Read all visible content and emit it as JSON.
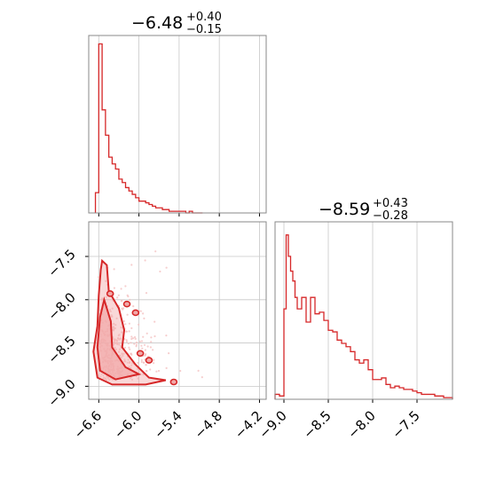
{
  "colors": {
    "accent": "#d62728",
    "fill": "#f1a9a9",
    "points": "#f4c2c2",
    "grid": "#c8c8c8",
    "frame": "#888888"
  },
  "chart_data": [
    {
      "type": "histogram",
      "panel": "param-1 marginal",
      "title": {
        "value": "−6.48",
        "plus": "+0.40",
        "minus": "−0.15"
      },
      "xlim": [
        -6.75,
        -4.1
      ],
      "xticks": [
        -6.6,
        -6.0,
        -5.4,
        -4.8,
        -4.2
      ],
      "bin_edges": [
        -6.65,
        -6.6,
        -6.55,
        -6.5,
        -6.45,
        -6.4,
        -6.35,
        -6.3,
        -6.25,
        -6.2,
        -6.15,
        -6.1,
        -6.05,
        -6.0,
        -5.95,
        -5.9,
        -5.85,
        -5.8,
        -5.75,
        -5.7,
        -5.65,
        -5.6,
        -5.55,
        -5.5,
        -5.45,
        -5.4,
        -5.35,
        -5.3,
        -5.25,
        -5.2,
        -5.15,
        -5.1,
        -5.05
      ],
      "counts": [
        0.12,
        1.0,
        0.61,
        0.46,
        0.33,
        0.29,
        0.26,
        0.2,
        0.18,
        0.15,
        0.13,
        0.11,
        0.09,
        0.07,
        0.07,
        0.06,
        0.05,
        0.04,
        0.03,
        0.03,
        0.02,
        0.02,
        0.01,
        0.01,
        0.01,
        0.01,
        0.01,
        0.0,
        0.01,
        0.0,
        0.0,
        0.0
      ]
    },
    {
      "type": "histogram",
      "panel": "param-2 marginal",
      "title": {
        "value": "−8.59",
        "plus": "+0.43",
        "minus": "−0.28"
      },
      "xlim": [
        -9.1,
        -7.1
      ],
      "xticks": [
        -9.0,
        -8.5,
        -8.0,
        -7.5
      ],
      "bin_edges": [
        -9.1,
        -9.05,
        -9.0,
        -8.975,
        -8.95,
        -8.925,
        -8.9,
        -8.875,
        -8.85,
        -8.8,
        -8.75,
        -8.7,
        -8.65,
        -8.6,
        -8.55,
        -8.5,
        -8.45,
        -8.4,
        -8.35,
        -8.3,
        -8.25,
        -8.2,
        -8.15,
        -8.1,
        -8.05,
        -8.0,
        -7.95,
        -7.9,
        -7.85,
        -7.8,
        -7.75,
        -7.7,
        -7.65,
        -7.6,
        -7.55,
        -7.5,
        -7.45,
        -7.4,
        -7.35,
        -7.3,
        -7.25,
        -7.2,
        -7.15,
        -7.1
      ],
      "counts": [
        0.03,
        0.02,
        0.55,
        1.0,
        0.87,
        0.78,
        0.72,
        0.62,
        0.55,
        0.62,
        0.47,
        0.62,
        0.52,
        0.53,
        0.48,
        0.42,
        0.41,
        0.36,
        0.34,
        0.32,
        0.29,
        0.24,
        0.22,
        0.24,
        0.18,
        0.12,
        0.12,
        0.13,
        0.09,
        0.07,
        0.08,
        0.07,
        0.06,
        0.06,
        0.05,
        0.04,
        0.03,
        0.03,
        0.03,
        0.02,
        0.02,
        0.01,
        0.01
      ]
    },
    {
      "type": "scatter",
      "panel": "joint density",
      "xlim": [
        -6.75,
        -4.1
      ],
      "ylim": [
        -9.15,
        -7.1
      ],
      "xticks": [
        -6.6,
        -6.0,
        -5.4,
        -4.8,
        -4.2
      ],
      "yticks": [
        -9.0,
        -8.5,
        -8.0,
        -7.5
      ],
      "tick_labels": {
        "x": [
          "−6.6",
          "−6.0",
          "−5.4",
          "−4.8",
          "−4.2"
        ],
        "y": [
          "−9.0",
          "−8.5",
          "−8.0",
          "−7.5"
        ]
      },
      "contours": [
        {
          "level": "outer",
          "points": [
            [
              -6.55,
              -7.55
            ],
            [
              -6.48,
              -7.6
            ],
            [
              -6.45,
              -7.9
            ],
            [
              -6.3,
              -8.1
            ],
            [
              -6.22,
              -8.35
            ],
            [
              -6.25,
              -8.55
            ],
            [
              -6.05,
              -8.75
            ],
            [
              -5.85,
              -8.9
            ],
            [
              -5.6,
              -8.93
            ],
            [
              -5.9,
              -8.98
            ],
            [
              -6.4,
              -8.98
            ],
            [
              -6.62,
              -8.9
            ],
            [
              -6.68,
              -8.6
            ],
            [
              -6.62,
              -8.3
            ],
            [
              -6.6,
              -7.95
            ],
            [
              -6.57,
              -7.65
            ]
          ]
        },
        {
          "level": "inner",
          "points": [
            [
              -6.52,
              -8.0
            ],
            [
              -6.42,
              -8.25
            ],
            [
              -6.4,
              -8.55
            ],
            [
              -6.2,
              -8.78
            ],
            [
              -6.0,
              -8.86
            ],
            [
              -6.35,
              -8.92
            ],
            [
              -6.58,
              -8.82
            ],
            [
              -6.62,
              -8.55
            ],
            [
              -6.58,
              -8.2
            ]
          ]
        }
      ],
      "islands": [
        {
          "x": -6.43,
          "y": -7.93
        },
        {
          "x": -6.18,
          "y": -8.05
        },
        {
          "x": -6.05,
          "y": -8.15
        },
        {
          "x": -5.98,
          "y": -8.62
        },
        {
          "x": -5.85,
          "y": -8.7
        },
        {
          "x": -5.48,
          "y": -8.95
        }
      ]
    }
  ]
}
